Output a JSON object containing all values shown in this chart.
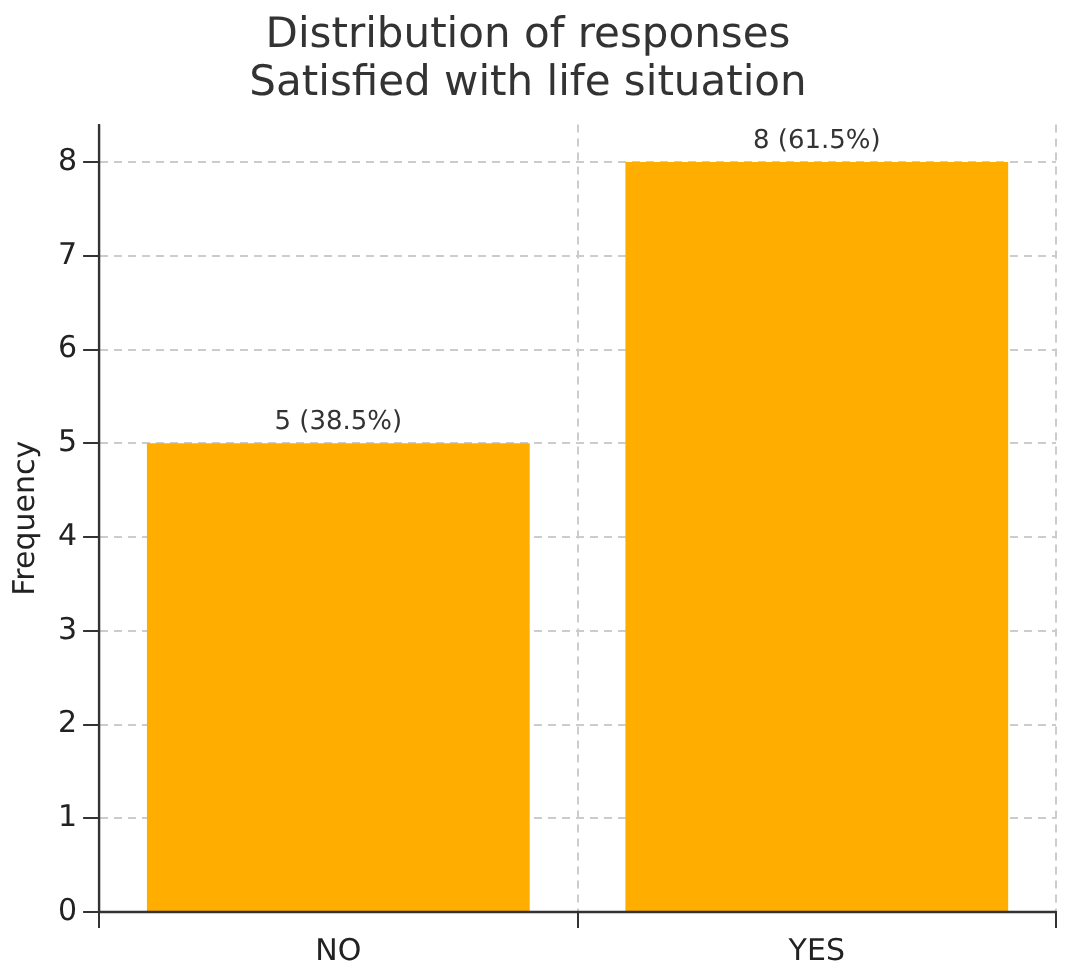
{
  "chart_data": {
    "type": "bar",
    "title": "Distribution of responses\nSatisfied with life situation",
    "ylabel": "Frequency",
    "categories": [
      "NO",
      "YES"
    ],
    "values": [
      5,
      8
    ],
    "value_labels": [
      "5 (38.5%)",
      "8 (61.5%)"
    ],
    "color": "#ffae00",
    "ylim": [
      0,
      8.4
    ],
    "yticks": [
      0,
      1,
      2,
      3,
      4,
      5,
      6,
      7,
      8
    ],
    "grid": true
  }
}
